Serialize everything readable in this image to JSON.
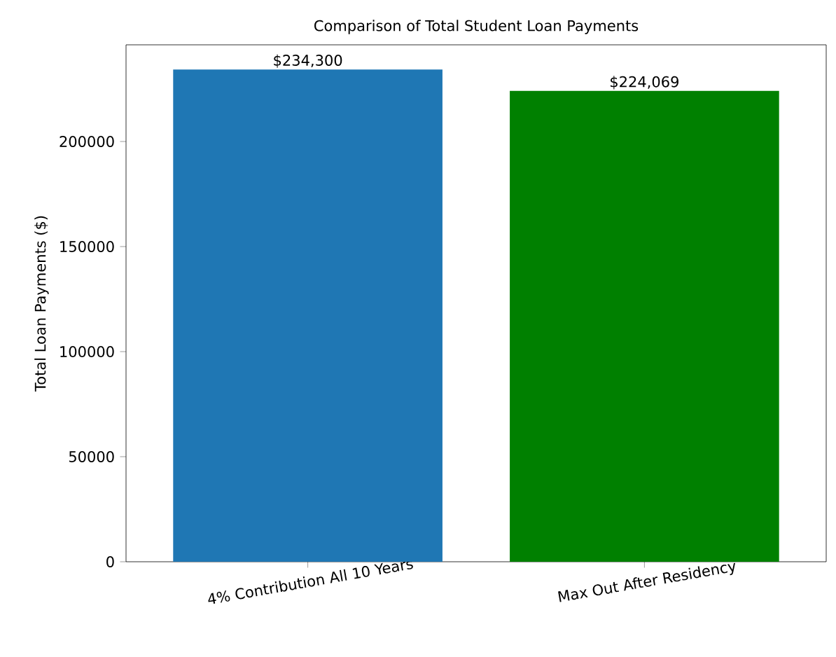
{
  "chart_data": {
    "type": "bar",
    "title": "Comparison of Total Student Loan Payments",
    "ylabel": "Total Loan Payments ($)",
    "categories": [
      "4% Contribution All 10 Years",
      "Max Out After Residency"
    ],
    "values": [
      234300,
      224069
    ],
    "colors": [
      "#1f77b4",
      "#008000"
    ],
    "value_labels": [
      "$234,300",
      "$224,069"
    ],
    "ylim": [
      0,
      246015
    ],
    "yticks": [
      0,
      50000,
      100000,
      150000,
      200000
    ]
  }
}
